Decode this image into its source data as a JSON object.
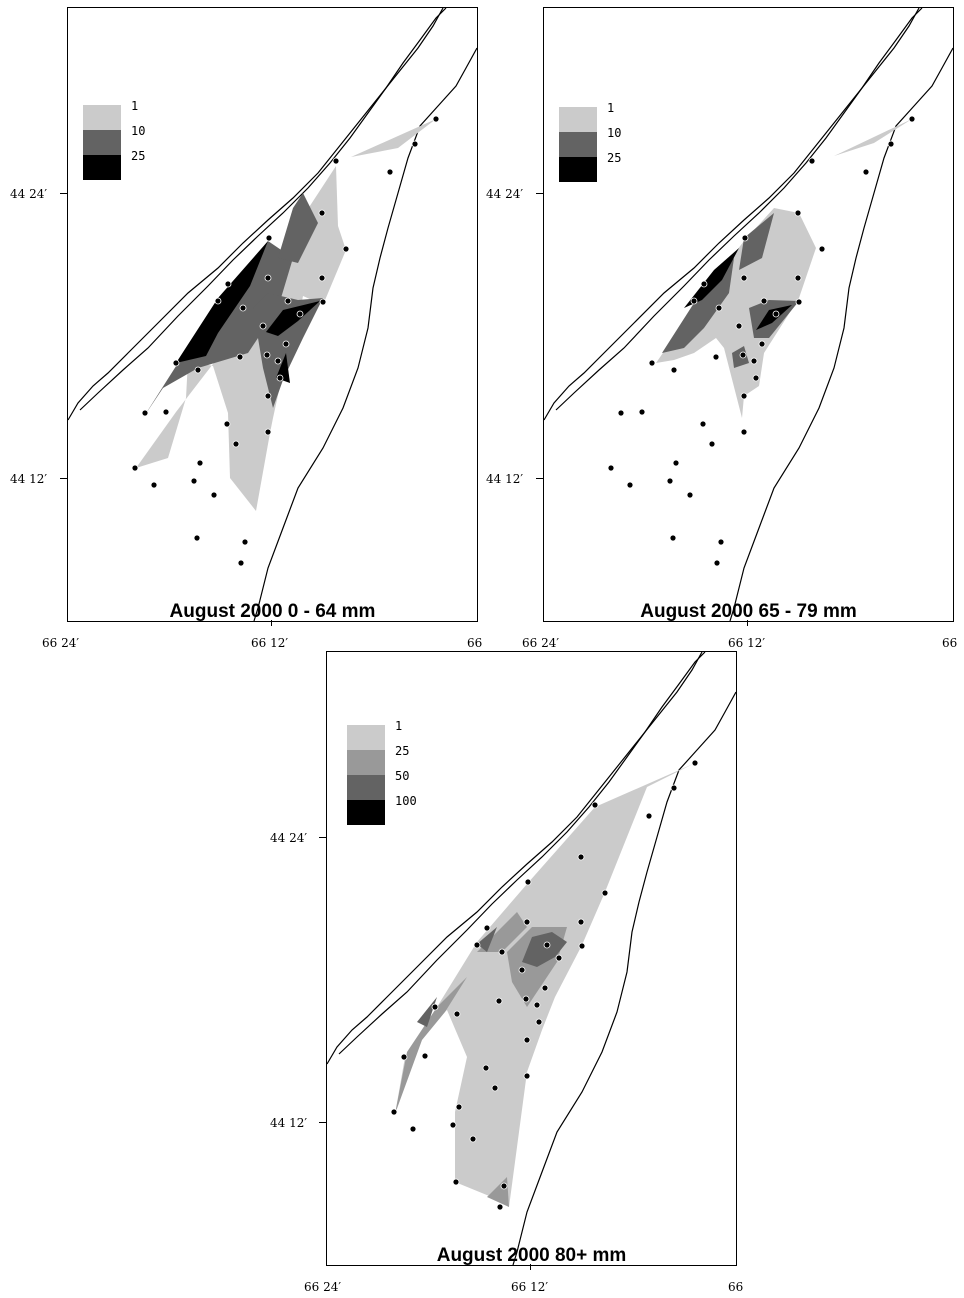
{
  "panels": [
    {
      "title": "August 2000 0 - 64 mm",
      "legend": [
        {
          "label": "1",
          "color": "#cbcbcb"
        },
        {
          "label": "10",
          "color": "#636363"
        },
        {
          "label": "25",
          "color": "#000000"
        }
      ]
    },
    {
      "title": "August 2000 65 - 79 mm",
      "legend": [
        {
          "label": "1",
          "color": "#cbcbcb"
        },
        {
          "label": "10",
          "color": "#636363"
        },
        {
          "label": "25",
          "color": "#000000"
        }
      ]
    },
    {
      "title": "August 2000 80+ mm",
      "legend": [
        {
          "label": "1",
          "color": "#cbcbcb"
        },
        {
          "label": "25",
          "color": "#999999"
        },
        {
          "label": "50",
          "color": "#636363"
        },
        {
          "label": "100",
          "color": "#000000"
        }
      ]
    }
  ],
  "axes": {
    "lat_ticks": [
      "44 24′",
      "44 12′"
    ],
    "lon_ticks": [
      "66 24′",
      "66 12′",
      "66"
    ]
  }
}
